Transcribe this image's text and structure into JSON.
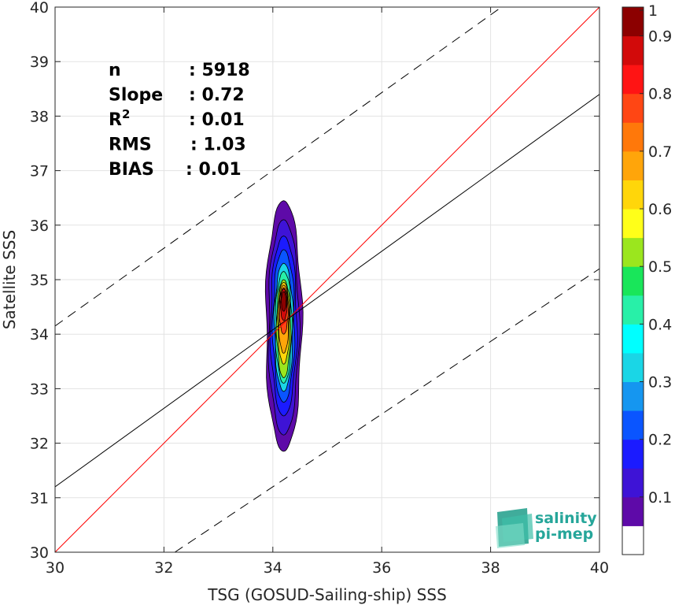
{
  "chart_data": {
    "type": "heatmap",
    "xlabel": "TSG (GOSUD-Sailing-ship) SSS",
    "ylabel": "Satellite SSS",
    "xlim": [
      30,
      40
    ],
    "ylim": [
      30,
      40
    ],
    "xticks": [
      30,
      32,
      34,
      36,
      38,
      40
    ],
    "yticks": [
      30,
      31,
      32,
      33,
      34,
      35,
      36,
      37,
      38,
      39,
      40
    ],
    "grid": true,
    "colorbar": {
      "min": 0,
      "max": 1,
      "ticks": [
        0.1,
        0.2,
        0.3,
        0.4,
        0.5,
        0.6,
        0.7,
        0.8,
        0.9,
        1
      ],
      "tick_labels": [
        "0.1",
        "0.2",
        "0.3",
        "0.4",
        "0.5",
        "0.6",
        "0.7",
        "0.8",
        "0.9",
        "1"
      ],
      "colors": [
        "#ffffff",
        "#5e0aa8",
        "#3e13d6",
        "#1b1bff",
        "#0a55ff",
        "#1596f0",
        "#1ad6e6",
        "#00ffff",
        "#28f0a8",
        "#19e65a",
        "#9be61e",
        "#ffff19",
        "#ffd60a",
        "#ffa50a",
        "#ff780a",
        "#ff4614",
        "#ff1414",
        "#d20a0a",
        "#8c0000"
      ]
    },
    "stats": [
      {
        "label": "n",
        "value": ": 5918"
      },
      {
        "label": "Slope",
        "value": ": 0.72"
      },
      {
        "label": "R",
        "sup": "2",
        "value": ": 0.01"
      },
      {
        "label": "RMS",
        "value": ": 1.03"
      },
      {
        "label": "BIAS",
        "value": ": 0.01"
      }
    ],
    "lines": [
      {
        "kind": "identity",
        "color": "#ff0000",
        "points": [
          [
            30,
            30
          ],
          [
            40,
            40
          ]
        ]
      },
      {
        "kind": "regression",
        "color": "#000000",
        "points": [
          [
            30,
            31.2
          ],
          [
            40,
            38.4
          ]
        ]
      },
      {
        "kind": "upper-bound",
        "color": "#000000",
        "style": "dashed",
        "points": [
          [
            30,
            34.15
          ],
          [
            38.2,
            40
          ]
        ]
      },
      {
        "kind": "lower-bound",
        "color": "#000000",
        "style": "dashed",
        "points": [
          [
            32.2,
            30
          ],
          [
            40,
            35.2
          ]
        ]
      }
    ],
    "density_center": {
      "x": 34.2,
      "y": 34.2
    }
  },
  "logo": {
    "line1": "salinity",
    "line2": "pi-mep"
  }
}
